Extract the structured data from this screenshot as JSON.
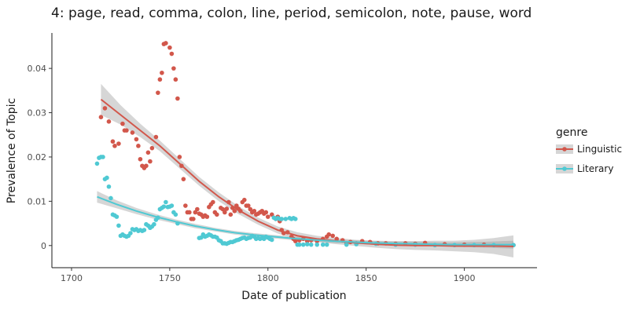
{
  "chart_data": {
    "type": "scatter",
    "title": "4: page, read, comma, colon, line, period, semicolon, note, pause, word",
    "xlabel": "Date of publication",
    "ylabel": "Prevalence of Topic",
    "xlim": [
      1690,
      1937
    ],
    "ylim": [
      -0.005,
      0.048
    ],
    "x_ticks": [
      1700,
      1750,
      1800,
      1850,
      1900
    ],
    "x_tick_labels": [
      "1700",
      "1750",
      "1800",
      "1850",
      "1900"
    ],
    "y_ticks": [
      0,
      0.01,
      0.02,
      0.03,
      0.04
    ],
    "y_tick_labels": [
      "0",
      "0.01",
      "0.02",
      "0.03",
      "0.04"
    ],
    "grid": false,
    "legend": {
      "title": "genre",
      "placement": "right"
    },
    "series": [
      {
        "name": "Linguistic",
        "color": "#d2574b",
        "points": [
          [
            1715,
            0.029
          ],
          [
            1717,
            0.031
          ],
          [
            1719,
            0.028
          ],
          [
            1721,
            0.0235
          ],
          [
            1722,
            0.0225
          ],
          [
            1724,
            0.023
          ],
          [
            1726,
            0.0275
          ],
          [
            1727,
            0.026
          ],
          [
            1728,
            0.026
          ],
          [
            1731,
            0.0255
          ],
          [
            1733,
            0.024
          ],
          [
            1734,
            0.0225
          ],
          [
            1735,
            0.0195
          ],
          [
            1736,
            0.018
          ],
          [
            1737,
            0.0175
          ],
          [
            1738,
            0.018
          ],
          [
            1739,
            0.021
          ],
          [
            1740,
            0.019
          ],
          [
            1741,
            0.022
          ],
          [
            1743,
            0.0245
          ],
          [
            1744,
            0.0345
          ],
          [
            1745,
            0.0375
          ],
          [
            1746,
            0.039
          ],
          [
            1747,
            0.0455
          ],
          [
            1748,
            0.0457
          ],
          [
            1750,
            0.0447
          ],
          [
            1751,
            0.0433
          ],
          [
            1752,
            0.04
          ],
          [
            1753,
            0.0375
          ],
          [
            1754,
            0.0332
          ],
          [
            1755,
            0.02
          ],
          [
            1756,
            0.018
          ],
          [
            1757,
            0.015
          ],
          [
            1758,
            0.009
          ],
          [
            1759,
            0.0075
          ],
          [
            1760,
            0.0075
          ],
          [
            1761,
            0.006
          ],
          [
            1762,
            0.006
          ],
          [
            1763,
            0.0075
          ],
          [
            1764,
            0.0082
          ],
          [
            1765,
            0.0072
          ],
          [
            1766,
            0.007
          ],
          [
            1767,
            0.0065
          ],
          [
            1768,
            0.0068
          ],
          [
            1769,
            0.0065
          ],
          [
            1770,
            0.0087
          ],
          [
            1771,
            0.0093
          ],
          [
            1772,
            0.0098
          ],
          [
            1773,
            0.0075
          ],
          [
            1774,
            0.007
          ],
          [
            1776,
            0.0085
          ],
          [
            1777,
            0.0082
          ],
          [
            1778,
            0.0075
          ],
          [
            1779,
            0.0083
          ],
          [
            1780,
            0.0098
          ],
          [
            1781,
            0.007
          ],
          [
            1782,
            0.0085
          ],
          [
            1783,
            0.0078
          ],
          [
            1784,
            0.009
          ],
          [
            1785,
            0.0083
          ],
          [
            1786,
            0.0078
          ],
          [
            1787,
            0.0098
          ],
          [
            1788,
            0.0103
          ],
          [
            1789,
            0.009
          ],
          [
            1790,
            0.009
          ],
          [
            1791,
            0.0082
          ],
          [
            1792,
            0.0075
          ],
          [
            1793,
            0.0078
          ],
          [
            1794,
            0.007
          ],
          [
            1795,
            0.0072
          ],
          [
            1796,
            0.0075
          ],
          [
            1797,
            0.0078
          ],
          [
            1798,
            0.0072
          ],
          [
            1799,
            0.0075
          ],
          [
            1800,
            0.0065
          ],
          [
            1802,
            0.007
          ],
          [
            1804,
            0.006
          ],
          [
            1805,
            0.0065
          ],
          [
            1806,
            0.0055
          ],
          [
            1807,
            0.0035
          ],
          [
            1808,
            0.0028
          ],
          [
            1810,
            0.003
          ],
          [
            1812,
            0.002
          ],
          [
            1813,
            0.0015
          ],
          [
            1814,
            0.001
          ],
          [
            1816,
            0.0012
          ],
          [
            1818,
            0.0015
          ],
          [
            1820,
            0.001
          ],
          [
            1822,
            0.0012
          ],
          [
            1825,
            0.001
          ],
          [
            1828,
            0.0015
          ],
          [
            1830,
            0.002
          ],
          [
            1831,
            0.0025
          ],
          [
            1833,
            0.0022
          ],
          [
            1835,
            0.0015
          ],
          [
            1838,
            0.0012
          ],
          [
            1840,
            0.0005
          ],
          [
            1842,
            0.0008
          ],
          [
            1845,
            0.0005
          ],
          [
            1848,
            0.001
          ],
          [
            1852,
            0.0008
          ],
          [
            1856,
            0.0005
          ],
          [
            1860,
            0.0005
          ],
          [
            1865,
            0.0004
          ],
          [
            1870,
            0.0005
          ],
          [
            1875,
            0.0004
          ],
          [
            1880,
            0.0006
          ],
          [
            1890,
            0.0003
          ],
          [
            1900,
            0.0002
          ],
          [
            1910,
            0.0002
          ],
          [
            1925,
            0.0001
          ]
        ],
        "smooth": {
          "x": [
            1715,
            1725,
            1735,
            1745,
            1755,
            1765,
            1775,
            1785,
            1795,
            1805,
            1815,
            1825,
            1835,
            1845,
            1855,
            1865,
            1875,
            1885,
            1895,
            1905,
            1915,
            1925
          ],
          "y": [
            0.033,
            0.0295,
            0.026,
            0.0225,
            0.0185,
            0.0145,
            0.011,
            0.008,
            0.0055,
            0.0035,
            0.0022,
            0.0015,
            0.001,
            0.0006,
            0.0003,
            0.0001,
            0.0,
            0.0,
            -0.0001,
            -0.0001,
            -0.0001,
            -0.0002
          ],
          "se": [
            0.0035,
            0.0022,
            0.0015,
            0.0012,
            0.0011,
            0.001,
            0.001,
            0.0009,
            0.0008,
            0.0008,
            0.0008,
            0.0007,
            0.0007,
            0.0007,
            0.0008,
            0.0009,
            0.001,
            0.0011,
            0.0012,
            0.0014,
            0.0018,
            0.0025
          ]
        }
      },
      {
        "name": "Literary",
        "color": "#4fc9d3",
        "points": [
          [
            1713,
            0.0185
          ],
          [
            1714,
            0.0198
          ],
          [
            1715,
            0.02
          ],
          [
            1716,
            0.02
          ],
          [
            1717,
            0.015
          ],
          [
            1718,
            0.0153
          ],
          [
            1719,
            0.0133
          ],
          [
            1720,
            0.0107
          ],
          [
            1721,
            0.007
          ],
          [
            1722,
            0.0068
          ],
          [
            1723,
            0.0065
          ],
          [
            1724,
            0.0045
          ],
          [
            1725,
            0.0022
          ],
          [
            1726,
            0.0025
          ],
          [
            1727,
            0.0022
          ],
          [
            1728,
            0.002
          ],
          [
            1729,
            0.0022
          ],
          [
            1730,
            0.0028
          ],
          [
            1731,
            0.0037
          ],
          [
            1732,
            0.0035
          ],
          [
            1733,
            0.0037
          ],
          [
            1734,
            0.0033
          ],
          [
            1735,
            0.0035
          ],
          [
            1736,
            0.0033
          ],
          [
            1737,
            0.0035
          ],
          [
            1738,
            0.0048
          ],
          [
            1739,
            0.0045
          ],
          [
            1740,
            0.004
          ],
          [
            1741,
            0.0043
          ],
          [
            1742,
            0.0048
          ],
          [
            1743,
            0.0058
          ],
          [
            1744,
            0.0063
          ],
          [
            1745,
            0.0082
          ],
          [
            1746,
            0.0085
          ],
          [
            1747,
            0.0088
          ],
          [
            1748,
            0.0098
          ],
          [
            1749,
            0.0087
          ],
          [
            1750,
            0.0088
          ],
          [
            1751,
            0.009
          ],
          [
            1752,
            0.0075
          ],
          [
            1753,
            0.007
          ],
          [
            1754,
            0.005
          ],
          [
            1765,
            0.0017
          ],
          [
            1766,
            0.0018
          ],
          [
            1767,
            0.0025
          ],
          [
            1768,
            0.002
          ],
          [
            1769,
            0.0022
          ],
          [
            1770,
            0.0025
          ],
          [
            1771,
            0.0023
          ],
          [
            1772,
            0.002
          ],
          [
            1773,
            0.002
          ],
          [
            1774,
            0.0018
          ],
          [
            1775,
            0.0012
          ],
          [
            1776,
            0.001
          ],
          [
            1777,
            0.0005
          ],
          [
            1778,
            0.0005
          ],
          [
            1779,
            0.0004
          ],
          [
            1780,
            0.0006
          ],
          [
            1781,
            0.0008
          ],
          [
            1782,
            0.0008
          ],
          [
            1783,
            0.001
          ],
          [
            1784,
            0.0012
          ],
          [
            1785,
            0.0013
          ],
          [
            1786,
            0.0015
          ],
          [
            1787,
            0.0017
          ],
          [
            1788,
            0.0018
          ],
          [
            1789,
            0.0015
          ],
          [
            1790,
            0.0017
          ],
          [
            1791,
            0.0018
          ],
          [
            1792,
            0.0022
          ],
          [
            1793,
            0.002
          ],
          [
            1794,
            0.0015
          ],
          [
            1795,
            0.0017
          ],
          [
            1796,
            0.0015
          ],
          [
            1797,
            0.0017
          ],
          [
            1798,
            0.0015
          ],
          [
            1799,
            0.002
          ],
          [
            1800,
            0.0018
          ],
          [
            1801,
            0.0015
          ],
          [
            1802,
            0.0013
          ],
          [
            1803,
            0.0063
          ],
          [
            1804,
            0.006
          ],
          [
            1805,
            0.0062
          ],
          [
            1806,
            0.006
          ],
          [
            1807,
            0.006
          ],
          [
            1809,
            0.006
          ],
          [
            1811,
            0.0062
          ],
          [
            1812,
            0.006
          ],
          [
            1813,
            0.0062
          ],
          [
            1814,
            0.006
          ],
          [
            1815,
            0.0002
          ],
          [
            1816,
            0.0002
          ],
          [
            1818,
            0.0002
          ],
          [
            1820,
            0.0003
          ],
          [
            1822,
            0.0002
          ],
          [
            1825,
            0.0002
          ],
          [
            1828,
            0.0002
          ],
          [
            1830,
            0.0002
          ],
          [
            1840,
            0.0002
          ],
          [
            1845,
            0.0003
          ],
          [
            1855,
            0.0004
          ],
          [
            1865,
            0.0002
          ],
          [
            1875,
            0.0002
          ],
          [
            1885,
            0.0001
          ],
          [
            1895,
            0.0001
          ],
          [
            1905,
            0.0001
          ],
          [
            1915,
            0.0001
          ],
          [
            1925,
            0.0001
          ]
        ],
        "smooth": {
          "x": [
            1713,
            1723,
            1733,
            1743,
            1753,
            1763,
            1773,
            1783,
            1793,
            1803,
            1813,
            1823,
            1833,
            1843,
            1853,
            1863,
            1873,
            1883,
            1893,
            1903,
            1913,
            1925
          ],
          "y": [
            0.011,
            0.0093,
            0.0078,
            0.0065,
            0.0054,
            0.0044,
            0.0036,
            0.0029,
            0.0024,
            0.002,
            0.0016,
            0.0013,
            0.001,
            0.0008,
            0.0006,
            0.0005,
            0.0004,
            0.0003,
            0.0002,
            0.0002,
            0.0002,
            0.0002
          ],
          "se": [
            0.0013,
            0.0009,
            0.0007,
            0.0006,
            0.0005,
            0.0005,
            0.0004,
            0.0004,
            0.0004,
            0.0004,
            0.0004,
            0.0004,
            0.0004,
            0.0004,
            0.0004,
            0.0004,
            0.0005,
            0.0005,
            0.0005,
            0.0006,
            0.0007,
            0.0009
          ]
        }
      }
    ]
  }
}
